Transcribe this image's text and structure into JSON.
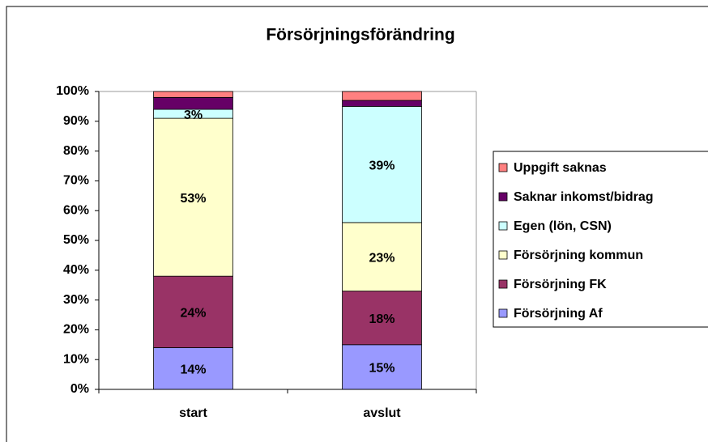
{
  "chart_data": {
    "type": "stacked_bar",
    "title": "Försörjningsförändring",
    "categories": [
      "start",
      "avslut"
    ],
    "series": [
      {
        "name": "Försörjning Af",
        "color": "#9999ff",
        "values": [
          14,
          15
        ],
        "value_labels": [
          "14%",
          "15%"
        ]
      },
      {
        "name": "Försörjning FK",
        "color": "#993366",
        "values": [
          24,
          18
        ],
        "value_labels": [
          "24%",
          "18%"
        ]
      },
      {
        "name": "Försörjning kommun",
        "color": "#ffffcc",
        "values": [
          53,
          23
        ],
        "value_labels": [
          "53%",
          "23%"
        ]
      },
      {
        "name": "Egen (lön, CSN)",
        "color": "#ccffff",
        "values": [
          3,
          39
        ],
        "value_labels": [
          "3%",
          "39%"
        ]
      },
      {
        "name": "Saknar inkomst/bidrag",
        "color": "#660066",
        "values": [
          4,
          2
        ]
      },
      {
        "name": "Uppgift saknas",
        "color": "#ff8080",
        "values": [
          2,
          3
        ]
      }
    ],
    "ylim": [
      0,
      100
    ],
    "yticks": [
      {
        "value": 0,
        "label": "0%"
      },
      {
        "value": 10,
        "label": "10%"
      },
      {
        "value": 20,
        "label": "20%"
      },
      {
        "value": 30,
        "label": "30%"
      },
      {
        "value": 40,
        "label": "40%"
      },
      {
        "value": 50,
        "label": "50%"
      },
      {
        "value": 60,
        "label": "60%"
      },
      {
        "value": 70,
        "label": "70%"
      },
      {
        "value": 80,
        "label": "80%"
      },
      {
        "value": 90,
        "label": "90%"
      },
      {
        "value": 100,
        "label": "100%"
      }
    ],
    "legend": "right"
  }
}
